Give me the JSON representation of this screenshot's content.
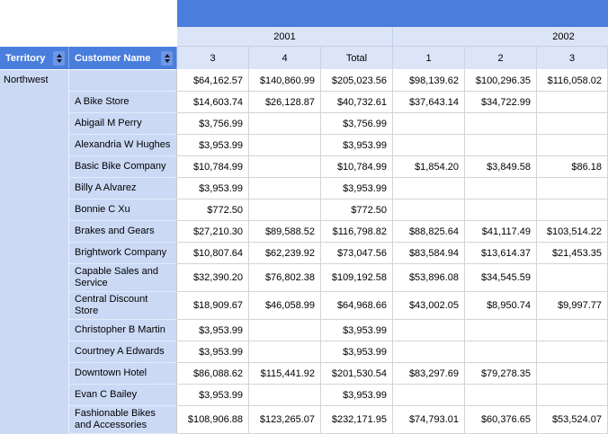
{
  "matrix": {
    "year_groups": [
      {
        "label": "2001",
        "columns": [
          "3",
          "4",
          "Total"
        ]
      },
      {
        "label": "2002",
        "columns": [
          "1",
          "2",
          "3"
        ]
      }
    ],
    "row_headers": {
      "territory_label": "Territory",
      "customer_label": "Customer Name"
    },
    "column_headers": [
      "3",
      "4",
      "Total",
      "1",
      "2",
      "3"
    ],
    "territory": "Northwest",
    "rows": [
      {
        "customer": "",
        "values": [
          "$64,162.57",
          "$140,860.99",
          "$205,023.56",
          "$98,139.62",
          "$100,296.35",
          "$116,058.02"
        ]
      },
      {
        "customer": "A Bike Store",
        "values": [
          "$14,603.74",
          "$26,128.87",
          "$40,732.61",
          "$37,643.14",
          "$34,722.99",
          ""
        ]
      },
      {
        "customer": "Abigail M Perry",
        "values": [
          "$3,756.99",
          "",
          "$3,756.99",
          "",
          "",
          ""
        ]
      },
      {
        "customer": "Alexandria W Hughes",
        "values": [
          "$3,953.99",
          "",
          "$3,953.99",
          "",
          "",
          ""
        ]
      },
      {
        "customer": "Basic Bike Company",
        "values": [
          "$10,784.99",
          "",
          "$10,784.99",
          "$1,854.20",
          "$3,849.58",
          "$86.18"
        ]
      },
      {
        "customer": "Billy A Alvarez",
        "values": [
          "$3,953.99",
          "",
          "$3,953.99",
          "",
          "",
          ""
        ]
      },
      {
        "customer": "Bonnie C Xu",
        "values": [
          "$772.50",
          "",
          "$772.50",
          "",
          "",
          ""
        ]
      },
      {
        "customer": "Brakes and Gears",
        "values": [
          "$27,210.30",
          "$89,588.52",
          "$116,798.82",
          "$88,825.64",
          "$41,117.49",
          "$103,514.22"
        ]
      },
      {
        "customer": "Brightwork Company",
        "values": [
          "$10,807.64",
          "$62,239.92",
          "$73,047.56",
          "$83,584.94",
          "$13,614.37",
          "$21,453.35"
        ]
      },
      {
        "customer": "Capable Sales and Service",
        "values": [
          "$32,390.20",
          "$76,802.38",
          "$109,192.58",
          "$53,896.08",
          "$34,545.59",
          ""
        ]
      },
      {
        "customer": "Central Discount Store",
        "values": [
          "$18,909.67",
          "$46,058.99",
          "$64,968.66",
          "$43,002.05",
          "$8,950.74",
          "$9,997.77"
        ]
      },
      {
        "customer": "Christopher B Martin",
        "values": [
          "$3,953.99",
          "",
          "$3,953.99",
          "",
          "",
          ""
        ]
      },
      {
        "customer": "Courtney A Edwards",
        "values": [
          "$3,953.99",
          "",
          "$3,953.99",
          "",
          "",
          ""
        ]
      },
      {
        "customer": "Downtown Hotel",
        "values": [
          "$86,088.62",
          "$115,441.92",
          "$201,530.54",
          "$83,297.69",
          "$79,278.35",
          ""
        ]
      },
      {
        "customer": "Evan C Bailey",
        "values": [
          "$3,953.99",
          "",
          "$3,953.99",
          "",
          "",
          ""
        ]
      },
      {
        "customer": "Fashionable Bikes and Accessories",
        "values": [
          "$108,906.88",
          "$123,265.07",
          "$232,171.95",
          "$74,793.01",
          "$60,376.65",
          "$53,524.07"
        ]
      }
    ]
  },
  "colors": {
    "header_blue": "#4a7edd",
    "sort_button_blue": "#6e96e8",
    "column_header_fill": "#dce4f7",
    "row_header_fill": "#cbd9f5",
    "grid_line": "#d4d4d4"
  }
}
